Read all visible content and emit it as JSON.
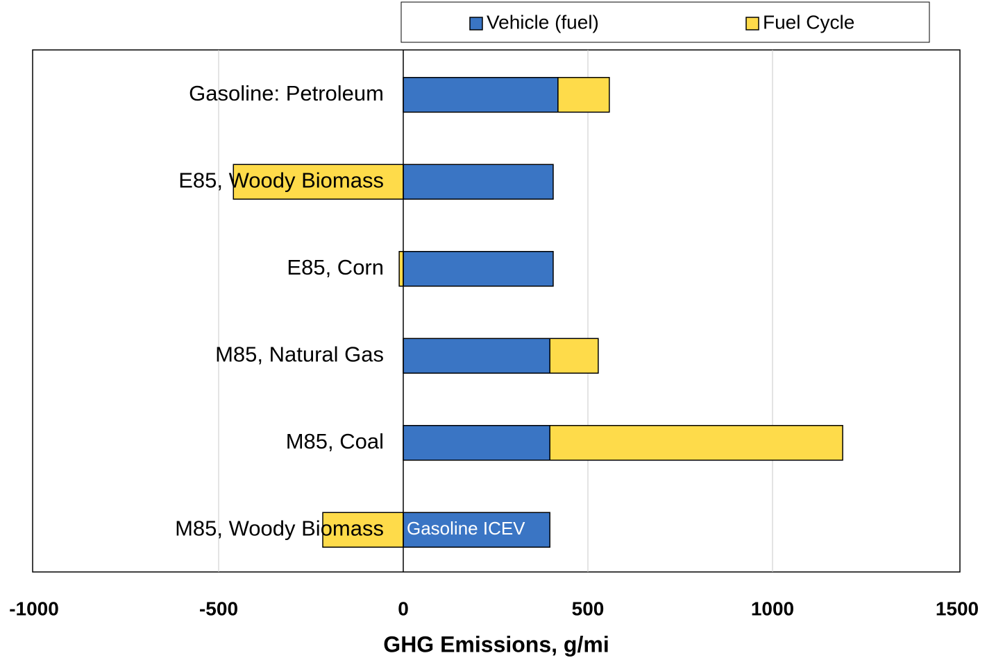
{
  "chart_data": {
    "type": "stacked_barh",
    "xlabel": "GHG Emissions, g/mi",
    "categories": [
      "Gasoline: Petroleum",
      "E85, Woody Biomass",
      "E85, Corn",
      "M85, Natural Gas",
      "M85, Coal",
      "M85, Woody Biomass"
    ],
    "series": [
      {
        "name": "Vehicle (fuel)",
        "color": "#3a75c4",
        "values": [
          419,
          406,
          406,
          397,
          397,
          397
        ]
      },
      {
        "name": "Fuel Cycle",
        "color": "#fedb4a",
        "values": [
          139,
          -460,
          -11,
          131,
          793,
          -218
        ]
      }
    ],
    "annotations": [
      {
        "text": "Gasoline ICEV"
      }
    ],
    "xlim": [
      -1000,
      1500
    ],
    "xticks": [
      -1000,
      -500,
      0,
      500,
      1000,
      1500
    ],
    "grid": true,
    "legend": "top"
  }
}
